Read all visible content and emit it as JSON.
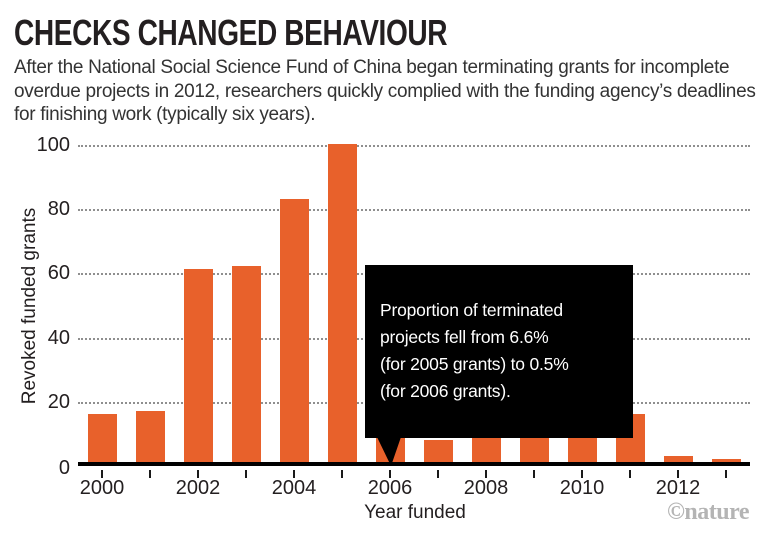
{
  "header": {
    "title": "CHECKS CHANGED BEHAVIOUR",
    "subtitle": "After the National Social Science Fund of China began terminating grants for incomplete overdue projects in 2012, researchers quickly complied with the funding agency’s deadlines for finishing work (typically six years)."
  },
  "chart_data": {
    "type": "bar",
    "title": "CHECKS CHANGED BEHAVIOUR",
    "categories": [
      2000,
      2001,
      2002,
      2003,
      2004,
      2005,
      2006,
      2007,
      2008,
      2009,
      2010,
      2011,
      2012,
      2013
    ],
    "values": [
      15,
      16,
      60,
      61,
      82,
      99,
      8,
      7,
      22,
      9,
      18,
      15,
      2,
      1
    ],
    "xlabel": "Year funded",
    "ylabel": "Revoked funded grants",
    "ylim": [
      0,
      100
    ],
    "yticks": [
      0,
      20,
      40,
      60,
      80,
      100
    ],
    "xtick_labels": [
      "2000",
      "2002",
      "2004",
      "2006",
      "2008",
      "2010",
      "2012"
    ],
    "grid": "horizontal-dotted",
    "legend": "none",
    "bar_color": "#E8612B",
    "annotation": {
      "text": "Proportion of terminated\nprojects fell from 6.6%\n(for 2005 grants) to 0.5%\n(for 2006 grants).",
      "target_category": 2006,
      "background": "#000000",
      "text_color": "#ffffff"
    }
  },
  "footer": {
    "credit": "©nature"
  }
}
